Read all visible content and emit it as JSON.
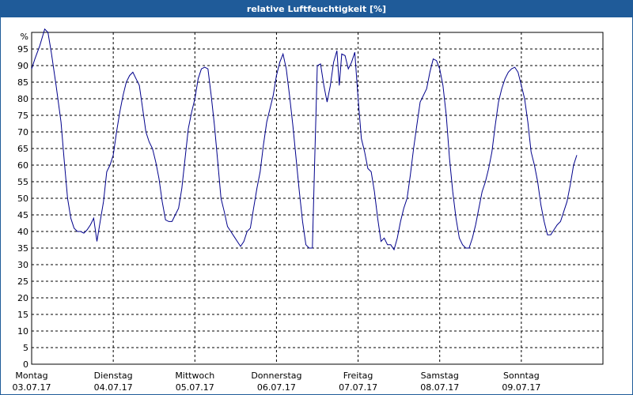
{
  "window": {
    "title": "relative Luftfeuchtigkeit [%]"
  },
  "chart_data": {
    "type": "line",
    "title": "relative Luftfeuchtigkeit [%]",
    "ylabel": "%",
    "ylim": [
      0,
      100
    ],
    "y_ticks": [
      0,
      5,
      10,
      15,
      20,
      25,
      30,
      35,
      40,
      45,
      50,
      55,
      60,
      65,
      70,
      75,
      80,
      85,
      90,
      95
    ],
    "grid": true,
    "x_ticks": [
      {
        "day": "Montag",
        "date": "03.07.17"
      },
      {
        "day": "Dienstag",
        "date": "04.07.17"
      },
      {
        "day": "Mittwoch",
        "date": "05.07.17"
      },
      {
        "day": "Donnerstag",
        "date": "06.07.17"
      },
      {
        "day": "Freitag",
        "date": "07.07.17"
      },
      {
        "day": "Samstag",
        "date": "08.07.17"
      },
      {
        "day": "Sonntag",
        "date": "09.07.17"
      }
    ],
    "colors": {
      "line": "#00008b",
      "grid": "#000000",
      "title_bar": "#1f5b99"
    },
    "series": [
      {
        "x_unit": "days from Montag 03.07.17 00:00",
        "points": [
          [
            0.0,
            89
          ],
          [
            0.04,
            92
          ],
          [
            0.1,
            96
          ],
          [
            0.16,
            101
          ],
          [
            0.2,
            100
          ],
          [
            0.24,
            94
          ],
          [
            0.3,
            84
          ],
          [
            0.36,
            73
          ],
          [
            0.4,
            61
          ],
          [
            0.44,
            50
          ],
          [
            0.48,
            44
          ],
          [
            0.52,
            41
          ],
          [
            0.56,
            40
          ],
          [
            0.6,
            40
          ],
          [
            0.64,
            39.5
          ],
          [
            0.68,
            40.5
          ],
          [
            0.72,
            42
          ],
          [
            0.76,
            44
          ],
          [
            0.8,
            37
          ],
          [
            0.84,
            43
          ],
          [
            0.88,
            49
          ],
          [
            0.92,
            58
          ],
          [
            0.96,
            60
          ],
          [
            1.0,
            63
          ],
          [
            1.04,
            70
          ],
          [
            1.08,
            76
          ],
          [
            1.12,
            81
          ],
          [
            1.16,
            85
          ],
          [
            1.2,
            87
          ],
          [
            1.24,
            88
          ],
          [
            1.28,
            86
          ],
          [
            1.32,
            84
          ],
          [
            1.36,
            77
          ],
          [
            1.4,
            70
          ],
          [
            1.44,
            67
          ],
          [
            1.48,
            65
          ],
          [
            1.52,
            61
          ],
          [
            1.56,
            56
          ],
          [
            1.6,
            49
          ],
          [
            1.64,
            43.5
          ],
          [
            1.68,
            43
          ],
          [
            1.72,
            43
          ],
          [
            1.76,
            45
          ],
          [
            1.8,
            47
          ],
          [
            1.84,
            53
          ],
          [
            1.88,
            62
          ],
          [
            1.92,
            71
          ],
          [
            1.96,
            76
          ],
          [
            2.0,
            80
          ],
          [
            2.04,
            86
          ],
          [
            2.08,
            89
          ],
          [
            2.12,
            89.5
          ],
          [
            2.16,
            89
          ],
          [
            2.2,
            81
          ],
          [
            2.24,
            72
          ],
          [
            2.28,
            61
          ],
          [
            2.32,
            50
          ],
          [
            2.36,
            46
          ],
          [
            2.4,
            41.5
          ],
          [
            2.44,
            40
          ],
          [
            2.48,
            38.5
          ],
          [
            2.52,
            37
          ],
          [
            2.56,
            35.5
          ],
          [
            2.6,
            37
          ],
          [
            2.64,
            40
          ],
          [
            2.68,
            41
          ],
          [
            2.72,
            47
          ],
          [
            2.76,
            53
          ],
          [
            2.8,
            58
          ],
          [
            2.84,
            66
          ],
          [
            2.88,
            73
          ],
          [
            2.92,
            77
          ],
          [
            2.96,
            81
          ],
          [
            3.0,
            87
          ],
          [
            3.04,
            91
          ],
          [
            3.08,
            93.5
          ],
          [
            3.12,
            89
          ],
          [
            3.16,
            81
          ],
          [
            3.2,
            72
          ],
          [
            3.24,
            62
          ],
          [
            3.28,
            52
          ],
          [
            3.32,
            43
          ],
          [
            3.36,
            36
          ],
          [
            3.4,
            35
          ],
          [
            3.44,
            35
          ],
          [
            3.47,
            63
          ],
          [
            3.5,
            90
          ],
          [
            3.54,
            90.5
          ],
          [
            3.58,
            84
          ],
          [
            3.62,
            79
          ],
          [
            3.66,
            84
          ],
          [
            3.7,
            91
          ],
          [
            3.74,
            94.5
          ],
          [
            3.77,
            84
          ],
          [
            3.8,
            93.5
          ],
          [
            3.84,
            93
          ],
          [
            3.88,
            89
          ],
          [
            3.92,
            91
          ],
          [
            3.96,
            94
          ],
          [
            4.0,
            80
          ],
          [
            4.04,
            68
          ],
          [
            4.08,
            64
          ],
          [
            4.12,
            59
          ],
          [
            4.16,
            58
          ],
          [
            4.2,
            52
          ],
          [
            4.24,
            44
          ],
          [
            4.28,
            37
          ],
          [
            4.32,
            38
          ],
          [
            4.36,
            36
          ],
          [
            4.4,
            36
          ],
          [
            4.44,
            34.5
          ],
          [
            4.48,
            38
          ],
          [
            4.52,
            43
          ],
          [
            4.56,
            47
          ],
          [
            4.6,
            50
          ],
          [
            4.64,
            57
          ],
          [
            4.68,
            65
          ],
          [
            4.72,
            72
          ],
          [
            4.76,
            79
          ],
          [
            4.8,
            81
          ],
          [
            4.84,
            83
          ],
          [
            4.88,
            88
          ],
          [
            4.92,
            92
          ],
          [
            4.96,
            91.5
          ],
          [
            5.0,
            89
          ],
          [
            5.04,
            84
          ],
          [
            5.08,
            75
          ],
          [
            5.12,
            62
          ],
          [
            5.16,
            52
          ],
          [
            5.2,
            44
          ],
          [
            5.24,
            38
          ],
          [
            5.28,
            36
          ],
          [
            5.32,
            35
          ],
          [
            5.36,
            35
          ],
          [
            5.4,
            38
          ],
          [
            5.44,
            42
          ],
          [
            5.48,
            47
          ],
          [
            5.52,
            52
          ],
          [
            5.56,
            55
          ],
          [
            5.6,
            59
          ],
          [
            5.64,
            64
          ],
          [
            5.68,
            72
          ],
          [
            5.72,
            79
          ],
          [
            5.76,
            83
          ],
          [
            5.8,
            86
          ],
          [
            5.84,
            88
          ],
          [
            5.88,
            89
          ],
          [
            5.92,
            89.5
          ],
          [
            5.96,
            88
          ],
          [
            6.0,
            84
          ],
          [
            6.04,
            80
          ],
          [
            6.08,
            73
          ],
          [
            6.12,
            64
          ],
          [
            6.16,
            60
          ],
          [
            6.2,
            55
          ],
          [
            6.24,
            48
          ],
          [
            6.28,
            43
          ],
          [
            6.32,
            39
          ],
          [
            6.36,
            39
          ],
          [
            6.4,
            40.5
          ],
          [
            6.44,
            42
          ],
          [
            6.48,
            43
          ],
          [
            6.52,
            46
          ],
          [
            6.56,
            49
          ],
          [
            6.6,
            54
          ],
          [
            6.64,
            60
          ],
          [
            6.68,
            63
          ]
        ]
      }
    ]
  }
}
